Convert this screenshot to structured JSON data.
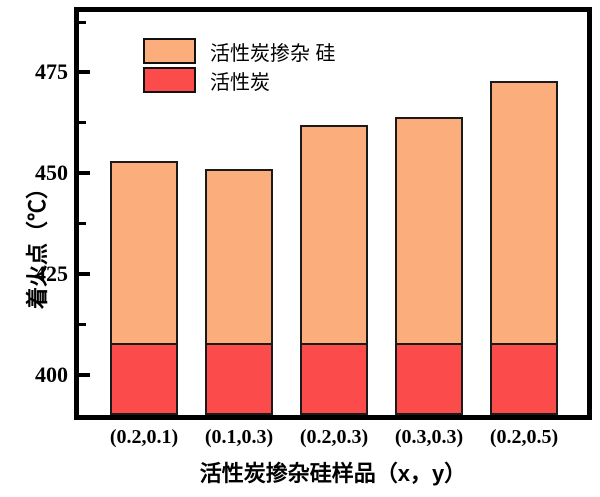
{
  "chart_data": {
    "type": "bar",
    "subtype": "stacked",
    "title": "",
    "categories": [
      "(0.2,0.1)",
      "(0.1,0.3)",
      "(0.2,0.3)",
      "(0.3,0.3)",
      "(0.2,0.5)"
    ],
    "series": [
      {
        "name": "活性炭掺杂 硅",
        "color": "#FBAE7B",
        "stack_top_values": [
          453,
          451,
          462,
          464,
          473
        ]
      },
      {
        "name": "活性炭",
        "color": "#FB4B4B",
        "stack_top_values": [
          408,
          408,
          408,
          408,
          408
        ]
      }
    ],
    "xlabel": "活性炭掺杂硅样品（x，y）",
    "ylabel": "着火点（℃）",
    "ylim": [
      390,
      490
    ],
    "yticks": [
      400,
      425,
      450,
      475
    ],
    "yticks_minor": [
      412.5,
      437.5,
      462.5,
      487.5
    ],
    "grid": false,
    "legend_position": "upper-left-inside",
    "axis_color": "#000000",
    "bar_border_color": "#1a1a1a",
    "background_color": "#ffffff"
  }
}
